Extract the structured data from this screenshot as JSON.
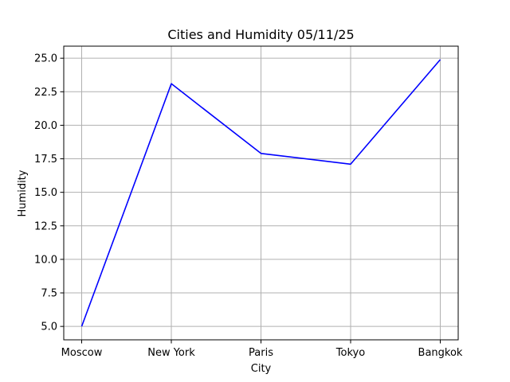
{
  "chart_data": {
    "type": "line",
    "title": "Cities and Humidity 05/11/25",
    "xlabel": "City",
    "ylabel": "Humidity",
    "categories": [
      "Moscow",
      "New York",
      "Paris",
      "Tokyo",
      "Bangkok"
    ],
    "series": [
      {
        "values": [
          5.0,
          23.1,
          17.9,
          17.1,
          24.9
        ],
        "color": "#0000ff"
      }
    ],
    "ylim": [
      4.0,
      25.9
    ],
    "yticks": [
      5.0,
      7.5,
      10.0,
      12.5,
      15.0,
      17.5,
      20.0,
      22.5,
      25.0
    ],
    "ytick_labels": [
      "5.0",
      "7.5",
      "10.0",
      "12.5",
      "15.0",
      "17.5",
      "20.0",
      "22.5",
      "25.0"
    ],
    "grid": true,
    "grid_color": "#b0b0b0",
    "legend": "none"
  }
}
